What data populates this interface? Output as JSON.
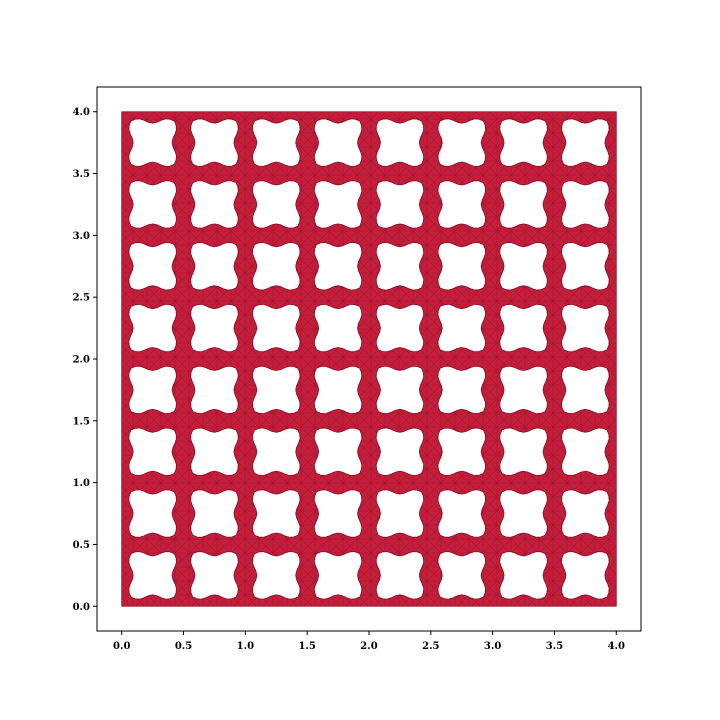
{
  "chart_data": {
    "type": "mesh",
    "description_colors": {
      "fill": "#c41e3a",
      "edge": "#8a0e26",
      "axes": "#000000",
      "background": "#ffffff"
    },
    "xlim": [
      -0.2,
      4.2
    ],
    "ylim": [
      -0.2,
      4.2
    ],
    "domain": {
      "x": [
        0.0,
        4.0
      ],
      "y": [
        0.0,
        4.0
      ]
    },
    "grid": false,
    "xticks": [
      0.0,
      0.5,
      1.0,
      1.5,
      2.0,
      2.5,
      3.0,
      3.5,
      4.0
    ],
    "yticks": [
      0.0,
      0.5,
      1.0,
      1.5,
      2.0,
      2.5,
      3.0,
      3.5,
      4.0
    ],
    "xtick_labels": [
      "0.0",
      "0.5",
      "1.0",
      "1.5",
      "2.0",
      "2.5",
      "3.0",
      "3.5",
      "4.0"
    ],
    "ytick_labels": [
      "0.0",
      "0.5",
      "1.0",
      "1.5",
      "2.0",
      "2.5",
      "3.0",
      "3.5",
      "4.0"
    ],
    "holes": {
      "rows": 8,
      "cols": 8,
      "cell_size": 0.5,
      "hole_size": 0.35,
      "shape": "wavy-square"
    }
  }
}
